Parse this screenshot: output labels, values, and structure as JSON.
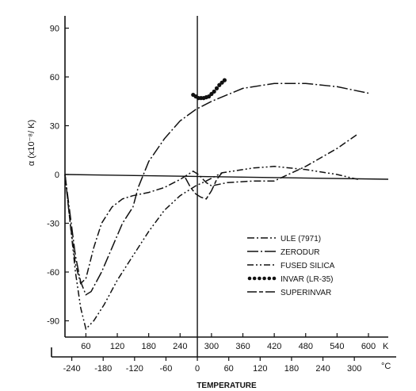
{
  "chart_data": {
    "type": "line",
    "ylabel": "α (x10⁻⁸/ K)",
    "xlabel": "TEMPERATURE",
    "ylim": [
      -100,
      100
    ],
    "xlim_kelvin": [
      20,
      600
    ],
    "yticks": [
      "90",
      "60",
      "30",
      "0",
      "-30",
      "-60",
      "-90"
    ],
    "xticks_kelvin": [
      "60",
      "120",
      "180",
      "240",
      "300",
      "360",
      "420",
      "480",
      "540",
      "600"
    ],
    "xunit_kelvin": "K",
    "xticks_celsius": [
      "-240",
      "-180",
      "-120",
      "-60",
      "0",
      "60",
      "120",
      "180",
      "240",
      "300"
    ],
    "xunit_celsius": "°C",
    "legend_position": "lower-right",
    "series": [
      {
        "name": "ULE (7971)",
        "style": "dash-dot",
        "points": [
          [
            20,
            0
          ],
          [
            30,
            -30
          ],
          [
            40,
            -55
          ],
          [
            50,
            -67
          ],
          [
            60,
            -64
          ],
          [
            75,
            -45
          ],
          [
            90,
            -30
          ],
          [
            110,
            -20
          ],
          [
            130,
            -15
          ],
          [
            150,
            -13
          ],
          [
            180,
            -11
          ],
          [
            210,
            -8
          ],
          [
            240,
            -3
          ],
          [
            265,
            2
          ],
          [
            275,
            0
          ],
          [
            290,
            -5
          ],
          [
            300,
            -7
          ],
          [
            330,
            -5
          ],
          [
            380,
            -4
          ],
          [
            420,
            -4
          ],
          [
            480,
            5
          ],
          [
            540,
            16
          ],
          [
            580,
            25
          ]
        ]
      },
      {
        "name": "ZERODUR",
        "style": "long-dash-dot",
        "points": [
          [
            20,
            0
          ],
          [
            30,
            -25
          ],
          [
            40,
            -50
          ],
          [
            50,
            -66
          ],
          [
            60,
            -74
          ],
          [
            70,
            -72
          ],
          [
            90,
            -60
          ],
          [
            110,
            -45
          ],
          [
            130,
            -30
          ],
          [
            150,
            -20
          ],
          [
            160,
            -8
          ],
          [
            180,
            8
          ],
          [
            210,
            22
          ],
          [
            240,
            33
          ],
          [
            270,
            40
          ],
          [
            300,
            45
          ],
          [
            360,
            53
          ],
          [
            420,
            56
          ],
          [
            480,
            56
          ],
          [
            540,
            54
          ],
          [
            600,
            50
          ]
        ]
      },
      {
        "name": "FUSED SILICA",
        "style": "dash-dot-dot",
        "points": [
          [
            20,
            0
          ],
          [
            30,
            -30
          ],
          [
            40,
            -60
          ],
          [
            50,
            -82
          ],
          [
            60,
            -95
          ],
          [
            75,
            -90
          ],
          [
            95,
            -80
          ],
          [
            120,
            -65
          ],
          [
            150,
            -50
          ],
          [
            180,
            -35
          ],
          [
            210,
            -22
          ],
          [
            240,
            -13
          ],
          [
            270,
            -7
          ],
          [
            290,
            -4
          ],
          [
            320,
            1
          ],
          [
            380,
            4
          ],
          [
            420,
            5
          ],
          [
            480,
            3
          ],
          [
            540,
            0
          ],
          [
            580,
            -3
          ]
        ]
      },
      {
        "name": "INVAR (LR-35)",
        "style": "dots",
        "points": [
          [
            265,
            49
          ],
          [
            275,
            47
          ],
          [
            285,
            47
          ],
          [
            295,
            48
          ],
          [
            305,
            51
          ],
          [
            315,
            55
          ],
          [
            325,
            58
          ]
        ]
      },
      {
        "name": "SUPERINVAR",
        "style": "long-dash-short-dash",
        "points": [
          [
            250,
            -2
          ],
          [
            260,
            -8
          ],
          [
            270,
            -12
          ],
          [
            280,
            -14
          ],
          [
            290,
            -15
          ],
          [
            300,
            -10
          ],
          [
            310,
            -3
          ],
          [
            320,
            1
          ]
        ]
      }
    ]
  }
}
